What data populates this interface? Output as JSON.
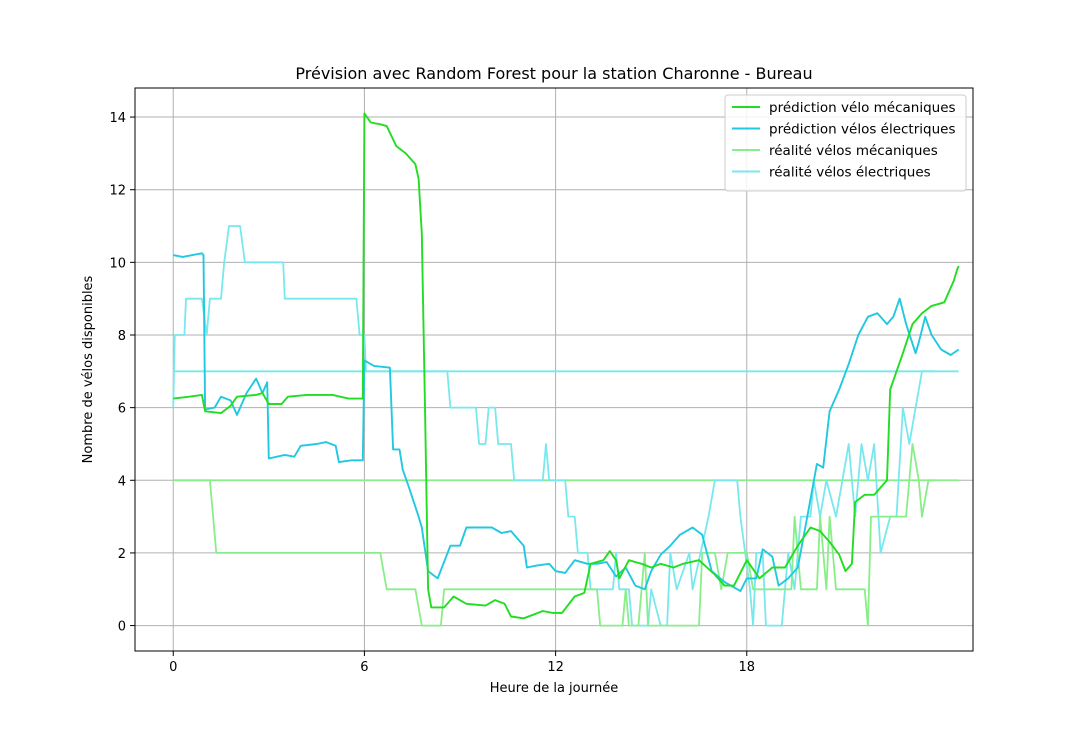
{
  "chart_data": {
    "type": "line",
    "title": "Prévision avec Random Forest pour la station Charonne - Bureau",
    "xlabel": "Heure de la journée",
    "ylabel": "Nombre de vélos disponibles",
    "xlim": [
      -1.2,
      25.1
    ],
    "ylim": [
      -0.7,
      14.8
    ],
    "x_ticks": [
      0,
      6,
      12,
      18
    ],
    "x_tick_labels": [
      "0",
      "6",
      "12",
      "18"
    ],
    "y_ticks": [
      0,
      2,
      4,
      6,
      8,
      10,
      12,
      14
    ],
    "y_tick_labels": [
      "0",
      "2",
      "4",
      "6",
      "8",
      "10",
      "12",
      "14"
    ],
    "grid": true,
    "legend_position": "top-right",
    "series": [
      {
        "name": "prédiction vélo mécaniques",
        "color": "#22dd22",
        "points": [
          [
            0,
            6.25
          ],
          [
            0.5,
            6.3
          ],
          [
            0.9,
            6.35
          ],
          [
            1.0,
            5.9
          ],
          [
            1.5,
            5.85
          ],
          [
            1.8,
            6.05
          ],
          [
            2.0,
            6.3
          ],
          [
            2.6,
            6.35
          ],
          [
            2.8,
            6.4
          ],
          [
            3.0,
            6.1
          ],
          [
            3.4,
            6.1
          ],
          [
            3.6,
            6.3
          ],
          [
            4.2,
            6.35
          ],
          [
            5.0,
            6.35
          ],
          [
            5.5,
            6.25
          ],
          [
            5.95,
            6.25
          ],
          [
            6.0,
            14.1
          ],
          [
            6.2,
            13.85
          ],
          [
            6.5,
            13.8
          ],
          [
            6.7,
            13.75
          ],
          [
            7.0,
            13.2
          ],
          [
            7.3,
            13.0
          ],
          [
            7.6,
            12.7
          ],
          [
            7.7,
            12.3
          ],
          [
            7.8,
            10.8
          ],
          [
            7.9,
            6.0
          ],
          [
            8.0,
            1.0
          ],
          [
            8.1,
            0.5
          ],
          [
            8.5,
            0.5
          ],
          [
            8.8,
            0.8
          ],
          [
            9.2,
            0.6
          ],
          [
            9.8,
            0.55
          ],
          [
            10.1,
            0.7
          ],
          [
            10.4,
            0.6
          ],
          [
            10.6,
            0.25
          ],
          [
            11.0,
            0.2
          ],
          [
            11.3,
            0.3
          ],
          [
            11.6,
            0.4
          ],
          [
            11.9,
            0.35
          ],
          [
            12.2,
            0.35
          ],
          [
            12.6,
            0.8
          ],
          [
            12.9,
            0.9
          ],
          [
            13.1,
            1.7
          ],
          [
            13.5,
            1.8
          ],
          [
            13.7,
            2.05
          ],
          [
            13.9,
            1.8
          ],
          [
            14.0,
            1.3
          ],
          [
            14.3,
            1.8
          ],
          [
            14.7,
            1.7
          ],
          [
            15.0,
            1.6
          ],
          [
            15.3,
            1.7
          ],
          [
            15.7,
            1.6
          ],
          [
            16.0,
            1.7
          ],
          [
            16.5,
            1.8
          ],
          [
            17.0,
            1.4
          ],
          [
            17.3,
            1.1
          ],
          [
            17.6,
            1.1
          ],
          [
            18.0,
            1.8
          ],
          [
            18.4,
            1.3
          ],
          [
            18.8,
            1.6
          ],
          [
            19.2,
            1.6
          ],
          [
            19.6,
            2.2
          ],
          [
            20.0,
            2.7
          ],
          [
            20.3,
            2.6
          ],
          [
            20.6,
            2.3
          ],
          [
            20.9,
            1.95
          ],
          [
            21.1,
            1.5
          ],
          [
            21.3,
            1.7
          ],
          [
            21.4,
            3.4
          ],
          [
            21.7,
            3.6
          ],
          [
            22.0,
            3.6
          ],
          [
            22.3,
            3.9
          ],
          [
            22.4,
            4.0
          ],
          [
            22.5,
            6.5
          ],
          [
            22.9,
            7.5
          ],
          [
            23.2,
            8.3
          ],
          [
            23.5,
            8.6
          ],
          [
            23.8,
            8.8
          ],
          [
            24.2,
            8.9
          ],
          [
            24.5,
            9.5
          ],
          [
            24.6,
            9.8
          ],
          [
            24.65,
            9.9
          ]
        ]
      },
      {
        "name": "prédiction vélos électriques",
        "color": "#22c8e0",
        "points": [
          [
            0,
            10.2
          ],
          [
            0.3,
            10.15
          ],
          [
            0.6,
            10.2
          ],
          [
            0.9,
            10.25
          ],
          [
            0.95,
            10.2
          ],
          [
            1.0,
            5.95
          ],
          [
            1.3,
            6.0
          ],
          [
            1.5,
            6.3
          ],
          [
            1.8,
            6.2
          ],
          [
            2.0,
            5.8
          ],
          [
            2.3,
            6.4
          ],
          [
            2.6,
            6.8
          ],
          [
            2.8,
            6.4
          ],
          [
            2.95,
            6.7
          ],
          [
            3.0,
            4.6
          ],
          [
            3.5,
            4.7
          ],
          [
            3.8,
            4.65
          ],
          [
            4.0,
            4.95
          ],
          [
            4.5,
            5.0
          ],
          [
            4.8,
            5.05
          ],
          [
            5.1,
            4.95
          ],
          [
            5.2,
            4.5
          ],
          [
            5.6,
            4.55
          ],
          [
            5.95,
            4.55
          ],
          [
            6.0,
            7.3
          ],
          [
            6.3,
            7.15
          ],
          [
            6.8,
            7.1
          ],
          [
            6.9,
            4.85
          ],
          [
            7.1,
            4.85
          ],
          [
            7.2,
            4.3
          ],
          [
            7.4,
            3.8
          ],
          [
            7.7,
            3.0
          ],
          [
            7.8,
            2.7
          ],
          [
            8.0,
            1.5
          ],
          [
            8.3,
            1.3
          ],
          [
            8.7,
            2.2
          ],
          [
            9.0,
            2.2
          ],
          [
            9.2,
            2.7
          ],
          [
            9.5,
            2.7
          ],
          [
            10.0,
            2.7
          ],
          [
            10.3,
            2.55
          ],
          [
            10.6,
            2.6
          ],
          [
            11.0,
            2.2
          ],
          [
            11.1,
            1.6
          ],
          [
            11.4,
            1.65
          ],
          [
            11.8,
            1.7
          ],
          [
            12.0,
            1.5
          ],
          [
            12.3,
            1.45
          ],
          [
            12.6,
            1.8
          ],
          [
            13.0,
            1.7
          ],
          [
            13.3,
            1.7
          ],
          [
            13.6,
            1.75
          ],
          [
            13.9,
            1.35
          ],
          [
            14.2,
            1.6
          ],
          [
            14.5,
            1.1
          ],
          [
            14.8,
            1.0
          ],
          [
            15.0,
            1.5
          ],
          [
            15.3,
            1.95
          ],
          [
            15.6,
            2.2
          ],
          [
            15.9,
            2.5
          ],
          [
            16.3,
            2.7
          ],
          [
            16.6,
            2.5
          ],
          [
            16.9,
            1.5
          ],
          [
            17.3,
            1.2
          ],
          [
            17.8,
            0.95
          ],
          [
            18.0,
            1.3
          ],
          [
            18.3,
            1.3
          ],
          [
            18.5,
            2.1
          ],
          [
            18.8,
            1.9
          ],
          [
            19.0,
            1.1
          ],
          [
            19.3,
            1.3
          ],
          [
            19.6,
            1.6
          ],
          [
            19.9,
            3.0
          ],
          [
            20.2,
            4.45
          ],
          [
            20.4,
            4.35
          ],
          [
            20.6,
            5.9
          ],
          [
            20.9,
            6.5
          ],
          [
            21.2,
            7.2
          ],
          [
            21.5,
            8.0
          ],
          [
            21.8,
            8.5
          ],
          [
            22.1,
            8.6
          ],
          [
            22.4,
            8.3
          ],
          [
            22.6,
            8.5
          ],
          [
            22.8,
            9.0
          ],
          [
            23.0,
            8.3
          ],
          [
            23.3,
            7.5
          ],
          [
            23.4,
            7.8
          ],
          [
            23.6,
            8.5
          ],
          [
            23.8,
            8.0
          ],
          [
            24.1,
            7.6
          ],
          [
            24.4,
            7.45
          ],
          [
            24.65,
            7.6
          ]
        ]
      },
      {
        "name": "réalité vélos mécaniques",
        "color": "#88ee88",
        "points": [
          [
            0,
            4
          ],
          [
            1.15,
            4
          ],
          [
            1.35,
            2
          ],
          [
            6.5,
            2
          ],
          [
            6.7,
            1
          ],
          [
            7.6,
            1
          ],
          [
            7.8,
            0
          ],
          [
            8.4,
            0
          ],
          [
            8.5,
            1
          ],
          [
            13.3,
            1
          ],
          [
            13.4,
            0
          ],
          [
            14.1,
            0
          ],
          [
            14.2,
            1
          ],
          [
            14.3,
            0
          ],
          [
            14.6,
            0
          ],
          [
            14.8,
            2
          ],
          [
            14.9,
            0
          ],
          [
            16.5,
            0
          ],
          [
            16.6,
            2
          ],
          [
            17.0,
            2
          ],
          [
            17.2,
            1
          ],
          [
            17.4,
            2
          ],
          [
            18.0,
            2
          ],
          [
            18.2,
            1
          ],
          [
            19.4,
            1
          ],
          [
            19.5,
            3
          ],
          [
            19.7,
            1
          ],
          [
            20.2,
            1
          ],
          [
            20.3,
            3
          ],
          [
            20.5,
            1
          ],
          [
            20.6,
            3
          ],
          [
            20.8,
            1
          ],
          [
            21.7,
            1
          ],
          [
            21.8,
            0
          ],
          [
            21.9,
            3
          ],
          [
            23.0,
            3
          ],
          [
            23.2,
            5
          ],
          [
            23.4,
            4
          ],
          [
            23.5,
            3
          ],
          [
            23.7,
            4
          ],
          [
            23.9,
            4
          ]
        ]
      },
      {
        "name": "réalité vélos électriques",
        "color": "#77e8ee",
        "points": [
          [
            0,
            6
          ],
          [
            0.05,
            8
          ],
          [
            0.35,
            8
          ],
          [
            0.4,
            9
          ],
          [
            0.9,
            9
          ],
          [
            1.05,
            8
          ],
          [
            1.15,
            9
          ],
          [
            1.5,
            9
          ],
          [
            1.6,
            10
          ],
          [
            1.75,
            11
          ],
          [
            2.1,
            11
          ],
          [
            2.25,
            10
          ],
          [
            3.45,
            10
          ],
          [
            3.5,
            9
          ],
          [
            5.75,
            9
          ],
          [
            5.85,
            8
          ],
          [
            6.0,
            8
          ],
          [
            6.05,
            7
          ],
          [
            8.6,
            7
          ],
          [
            8.7,
            6
          ],
          [
            9.5,
            6
          ],
          [
            9.6,
            5
          ],
          [
            9.8,
            5
          ],
          [
            9.9,
            6
          ],
          [
            10.1,
            6
          ],
          [
            10.2,
            5
          ],
          [
            10.6,
            5
          ],
          [
            10.7,
            4
          ],
          [
            11.6,
            4
          ],
          [
            11.7,
            5
          ],
          [
            11.8,
            4
          ],
          [
            12.3,
            4
          ],
          [
            12.4,
            3
          ],
          [
            12.6,
            3
          ],
          [
            12.7,
            2
          ],
          [
            13.0,
            2
          ],
          [
            13.1,
            1
          ],
          [
            13.8,
            1
          ],
          [
            13.9,
            2
          ],
          [
            14.0,
            1
          ],
          [
            14.3,
            1
          ],
          [
            14.4,
            0
          ],
          [
            14.9,
            0
          ],
          [
            15.0,
            1
          ],
          [
            15.3,
            0
          ],
          [
            15.5,
            0
          ],
          [
            15.6,
            2
          ],
          [
            15.8,
            1
          ],
          [
            16.2,
            2
          ],
          [
            16.3,
            1
          ],
          [
            16.8,
            3
          ],
          [
            17.0,
            4
          ],
          [
            17.7,
            4
          ],
          [
            17.8,
            3
          ],
          [
            18.1,
            1
          ],
          [
            18.2,
            0
          ],
          [
            18.3,
            2
          ],
          [
            18.5,
            2
          ],
          [
            18.6,
            0
          ],
          [
            19.1,
            0
          ],
          [
            19.3,
            2
          ],
          [
            19.5,
            1
          ],
          [
            19.7,
            3
          ],
          [
            20.0,
            3
          ],
          [
            20.1,
            4
          ],
          [
            20.3,
            3
          ],
          [
            20.5,
            4
          ],
          [
            20.8,
            3
          ],
          [
            21.0,
            4
          ],
          [
            21.2,
            5
          ],
          [
            21.4,
            3
          ],
          [
            21.5,
            4
          ],
          [
            21.6,
            5
          ],
          [
            21.8,
            4
          ],
          [
            22.0,
            5
          ],
          [
            22.2,
            2
          ],
          [
            22.5,
            3
          ],
          [
            22.7,
            3
          ],
          [
            22.9,
            6
          ],
          [
            23.1,
            5
          ],
          [
            23.3,
            6
          ],
          [
            23.5,
            7
          ],
          [
            23.9,
            7
          ]
        ]
      }
    ],
    "flat_lines": [
      {
        "value": 7,
        "from": 0,
        "to": 24.65,
        "color": "#77e8ee"
      },
      {
        "value": 4,
        "from": 0,
        "to": 24.65,
        "color": "#88ee88"
      }
    ]
  }
}
